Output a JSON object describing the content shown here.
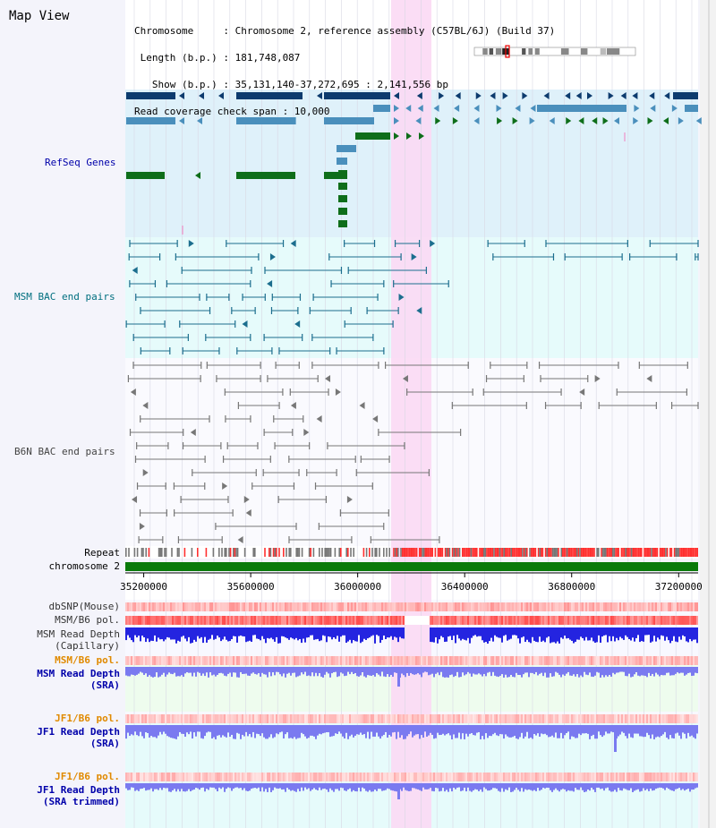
{
  "title": "Map View",
  "header": {
    "lines": [
      "Chromosome     : Chromosome 2, reference assembly (C57BL/6J) (Build 37)",
      " Length (b.p.) : 181,748,087",
      "   Show (b.p.) : 35,131,140-37,272,695 : 2,141,556 bp",
      "Read coverage check span : 10,000"
    ]
  },
  "tracks": {
    "refseq": "RefSeq Genes",
    "msm_bac": "MSM BAC end pairs",
    "b6n_bac": "B6N BAC end pairs",
    "repeat": "Repeat",
    "chromosome": "chromosome 2",
    "dbsnp": "dbSNP(Mouse)",
    "msm_b6_pol": "MSM/B6 pol.",
    "msm_depth_cap": [
      "MSM Read Depth",
      "(Capillary)"
    ],
    "msm_b6_pol2": "MSM/B6 pol.",
    "msm_depth_sra": [
      "MSM Read Depth",
      "(SRA)"
    ],
    "jf1_b6_pol": "JF1/B6 pol.",
    "jf1_depth_sra": [
      "JF1 Read Depth",
      "(SRA)"
    ],
    "jf1_b6_pol2": "JF1/B6 pol.",
    "jf1_depth_trim": [
      "JF1 Read Depth",
      "(SRA trimmed)"
    ]
  },
  "axis": {
    "ticks": [
      35200000,
      35600000,
      36000000,
      36400000,
      36800000,
      37200000
    ],
    "range": [
      35131140,
      37272695
    ]
  },
  "colors": {
    "refseq_bg": "#dff1fa",
    "msm_bg": "#e6fbfb",
    "b6n_bg": "#f4f4fb",
    "highlight": "#fbd9f4",
    "gene_dark": "#0d3b6e",
    "gene_mid": "#4a8fbc",
    "gene_green": "#0e6e1a",
    "msm_line": "#1c6e8e",
    "b6n_line": "#777777",
    "chrom_green": "#0a7a0a",
    "depth_blue": "#2424e0",
    "depth_light": "#7a7af0",
    "pol_red": "#ff3030",
    "label_blue": "#0000aa",
    "label_teal": "#006f7f",
    "label_orange": "#e08a00"
  }
}
